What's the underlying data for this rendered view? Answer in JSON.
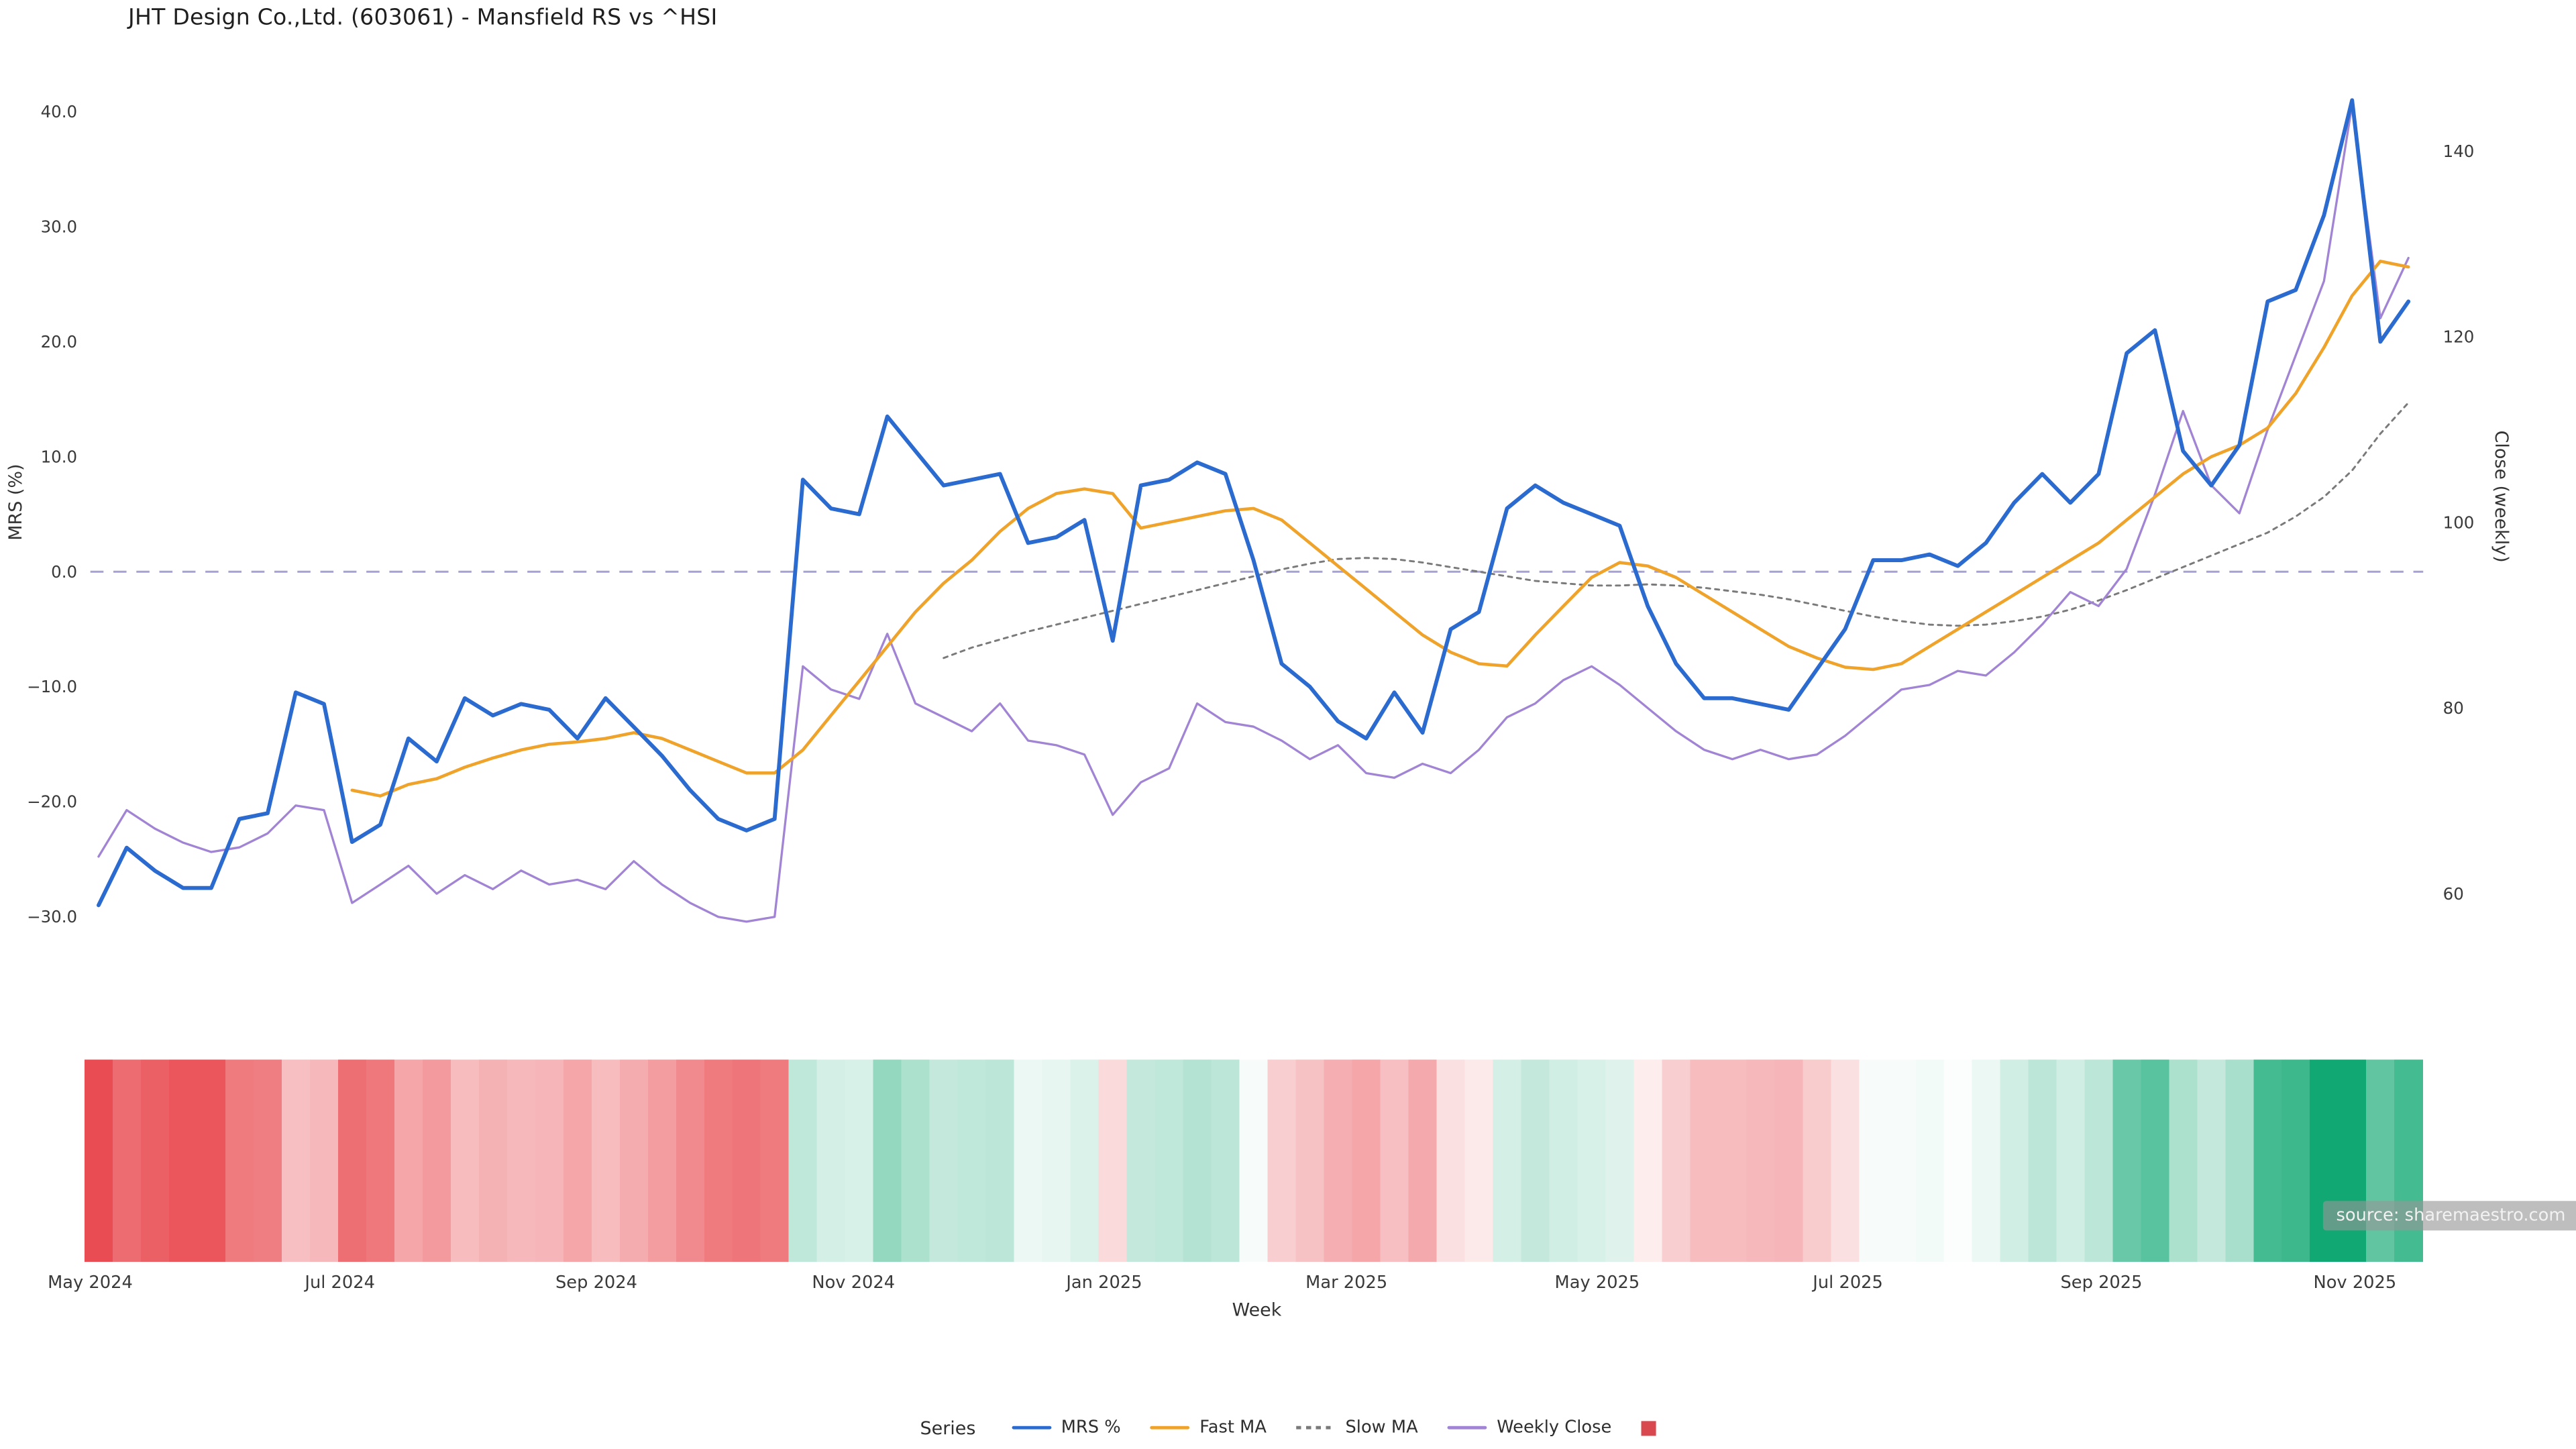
{
  "title": "JHT Design Co.,Ltd. (603061) - Mansfield RS vs ^HSI",
  "source_note": "source: sharemaestro.com",
  "legend": {
    "label": "Series",
    "items": [
      {
        "id": "mrs",
        "label": "MRS %",
        "color": "#2b6bd0",
        "swatch": "line"
      },
      {
        "id": "fast-ma",
        "label": "Fast MA",
        "color": "#efa32a",
        "swatch": "line"
      },
      {
        "id": "slow-ma",
        "label": "Slow MA",
        "color": "#7a7a7a",
        "swatch": "dashed-line"
      },
      {
        "id": "weekly-close",
        "label": "Weekly Close",
        "color": "#a184d4",
        "swatch": "line"
      },
      {
        "id": "heatmap",
        "label": "",
        "color": "#d9484e",
        "swatch": "square"
      }
    ]
  },
  "chart_data": {
    "type": "line",
    "title": "JHT Design Co.,Ltd. (603061) - Mansfield RS vs ^HSI",
    "xlabel": "Week",
    "ylabel_left": "MRS (%)",
    "ylabel_right": "Close (weekly)",
    "x_unit": "weekly",
    "ylim_left": [
      -33,
      43
    ],
    "ylim_right": [
      54,
      148
    ],
    "grid": false,
    "legend_position": "bottom-center",
    "zero_line": {
      "value": 0,
      "color": "#a5a1d6",
      "style": "dashed"
    },
    "x_ticks": [
      {
        "label": "May 2024",
        "week": -0.3
      },
      {
        "label": "Jul 2024",
        "week": 8.57
      },
      {
        "label": "Sep 2024",
        "week": 17.67
      },
      {
        "label": "Nov 2024",
        "week": 26.8
      },
      {
        "label": "Jan 2025",
        "week": 35.7
      },
      {
        "label": "Mar 2025",
        "week": 44.3
      },
      {
        "label": "May 2025",
        "week": 53.2
      },
      {
        "label": "Jul 2025",
        "week": 62.1
      },
      {
        "label": "Sep 2025",
        "week": 71.1
      },
      {
        "label": "Nov 2025",
        "week": 80.1
      }
    ],
    "yticks_left": [
      {
        "v": 40,
        "label": "40.0"
      },
      {
        "v": 30,
        "label": "30.0"
      },
      {
        "v": 20,
        "label": "20.0"
      },
      {
        "v": 10,
        "label": "10.0"
      },
      {
        "v": 0,
        "label": "0.0"
      },
      {
        "v": -10,
        "label": "−10.0"
      },
      {
        "v": -20,
        "label": "−20.0"
      },
      {
        "v": -30,
        "label": "−30.0"
      }
    ],
    "yticks_right": [
      {
        "v": 140,
        "label": "140"
      },
      {
        "v": 120,
        "label": "120"
      },
      {
        "v": 100,
        "label": "100"
      },
      {
        "v": 80,
        "label": "80"
      },
      {
        "v": 60,
        "label": "60"
      }
    ],
    "series": [
      {
        "id": "slow-ma",
        "name": "Slow MA",
        "axis": "left",
        "color": "#7a7a7a",
        "width": 1.2,
        "style": "dotted",
        "dash": "2.5 3",
        "values": [
          null,
          null,
          null,
          null,
          null,
          null,
          null,
          null,
          null,
          null,
          null,
          null,
          null,
          null,
          null,
          null,
          null,
          null,
          null,
          null,
          null,
          null,
          null,
          null,
          null,
          null,
          null,
          null,
          null,
          null,
          -7.5,
          -6.6,
          -5.9,
          -5.2,
          -4.6,
          -4,
          -3.4,
          -2.8,
          -2.2,
          -1.6,
          -1,
          -0.4,
          0.2,
          0.7,
          1.1,
          1.2,
          1.1,
          0.8,
          0.4,
          0,
          -0.4,
          -0.8,
          -1,
          -1.2,
          -1.2,
          -1.1,
          -1.2,
          -1.4,
          -1.7,
          -2,
          -2.4,
          -2.9,
          -3.4,
          -3.9,
          -4.3,
          -4.6,
          -4.7,
          -4.6,
          -4.3,
          -3.9,
          -3.3,
          -2.5,
          -1.6,
          -0.6,
          0.4,
          1.4,
          2.4,
          3.4,
          4.8,
          6.5,
          8.8,
          12,
          14.7
        ]
      },
      {
        "id": "weekly-close",
        "name": "Weekly Close",
        "axis": "right",
        "color": "#a184d4",
        "width": 1.35,
        "style": "solid",
        "dash": null,
        "values": [
          64,
          69,
          67,
          65.5,
          64.5,
          65,
          66.5,
          69.5,
          69,
          59,
          61,
          63,
          60,
          62,
          60.5,
          62.5,
          61,
          61.5,
          60.5,
          63.5,
          61,
          59,
          57.5,
          57,
          57.5,
          84.5,
          82,
          81,
          88,
          80.5,
          79,
          77.5,
          80.5,
          76.5,
          76,
          75,
          68.5,
          72,
          73.5,
          80.5,
          78.5,
          78,
          76.5,
          74.5,
          76,
          73,
          72.5,
          74,
          73,
          75.5,
          79,
          80.5,
          83,
          84.5,
          82.5,
          80,
          77.5,
          75.5,
          74.5,
          75.5,
          74.5,
          75,
          77,
          79.5,
          82,
          82.5,
          84,
          83.5,
          86,
          89,
          92.5,
          91,
          95,
          103,
          112,
          104,
          101,
          110,
          118,
          126,
          145,
          122,
          128.5
        ]
      },
      {
        "id": "fast-ma",
        "name": "Fast MA",
        "axis": "left",
        "color": "#efa32a",
        "width": 1.9,
        "style": "solid",
        "dash": null,
        "values": [
          null,
          null,
          null,
          null,
          null,
          null,
          null,
          null,
          null,
          -19,
          -19.5,
          -18.5,
          -18,
          -17,
          -16.2,
          -15.5,
          -15,
          -14.8,
          -14.5,
          -14,
          -14.5,
          -15.5,
          -16.5,
          -17.5,
          -17.5,
          -15.5,
          -12.5,
          -9.5,
          -6.5,
          -3.5,
          -1,
          1,
          3.5,
          5.5,
          6.8,
          7.2,
          6.8,
          3.8,
          4.3,
          4.8,
          5.3,
          5.5,
          4.5,
          2.5,
          0.5,
          -1.5,
          -3.5,
          -5.5,
          -7,
          -8,
          -8.2,
          -5.5,
          -3,
          -0.5,
          0.8,
          0.5,
          -0.5,
          -2,
          -3.5,
          -5,
          -6.5,
          -7.5,
          -8.3,
          -8.5,
          -8,
          -6.5,
          -5,
          -3.5,
          -2,
          -0.5,
          1,
          2.5,
          4.5,
          6.5,
          8.5,
          10,
          11,
          12.5,
          15.5,
          19.5,
          24,
          27,
          26.5
        ]
      },
      {
        "id": "mrs",
        "name": "MRS %",
        "axis": "left",
        "color": "#2b6bd0",
        "width": 2.4,
        "style": "solid",
        "dash": null,
        "values": [
          -29,
          -24,
          -26,
          -27.5,
          -27.5,
          -21.5,
          -21,
          -10.5,
          -11.5,
          -23.5,
          -22,
          -14.5,
          -16.5,
          -11,
          -12.5,
          -11.5,
          -12,
          -14.5,
          -11,
          -13.5,
          -16,
          -19,
          -21.5,
          -22.5,
          -21.5,
          8,
          5.5,
          5,
          13.5,
          10.5,
          7.5,
          8,
          8.5,
          2.5,
          3,
          4.5,
          -6,
          7.5,
          8,
          9.5,
          8.5,
          1,
          -8,
          -10,
          -13,
          -14.5,
          -10.5,
          -14,
          -5,
          -3.5,
          5.5,
          7.5,
          6,
          5,
          4,
          -3,
          -8,
          -11,
          -11,
          -11.5,
          -12,
          -8.5,
          -5,
          1,
          1,
          1.5,
          0.5,
          2.5,
          6,
          8.5,
          6,
          8.5,
          19,
          21,
          10.5,
          7.5,
          11,
          23.5,
          24.5,
          31,
          41,
          20,
          23.5
        ]
      }
    ],
    "heatmap": {
      "derived_from": "mrs",
      "negative_color": "#e8474d",
      "positive_color": "#12a874",
      "scale_abs_max": 30
    }
  }
}
